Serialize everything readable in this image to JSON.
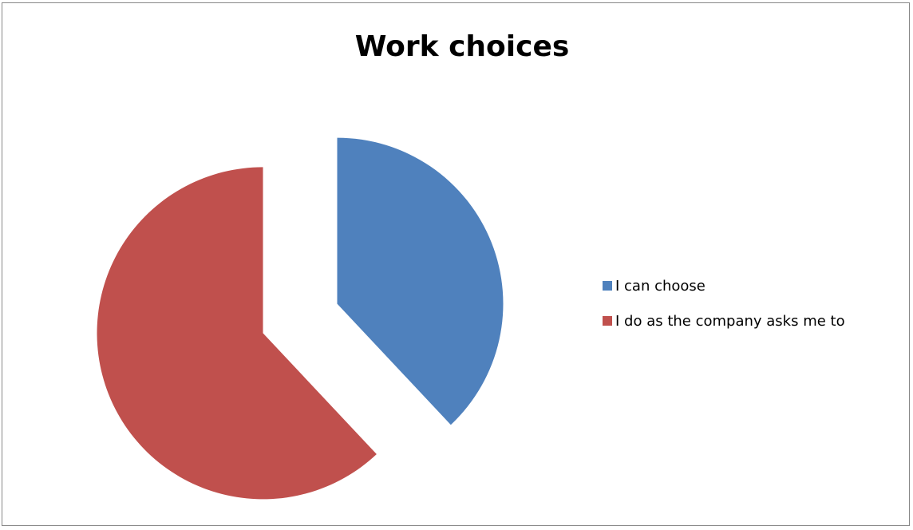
{
  "chart_data": {
    "type": "pie",
    "title": "Work choices",
    "series": [
      {
        "values": [
          38,
          62
        ]
      }
    ],
    "categories": [
      "I can choose",
      "I do as the company asks me to"
    ],
    "colors": [
      "#4f81bd",
      "#c0504d"
    ],
    "exploded": true,
    "legend_position": "right"
  }
}
